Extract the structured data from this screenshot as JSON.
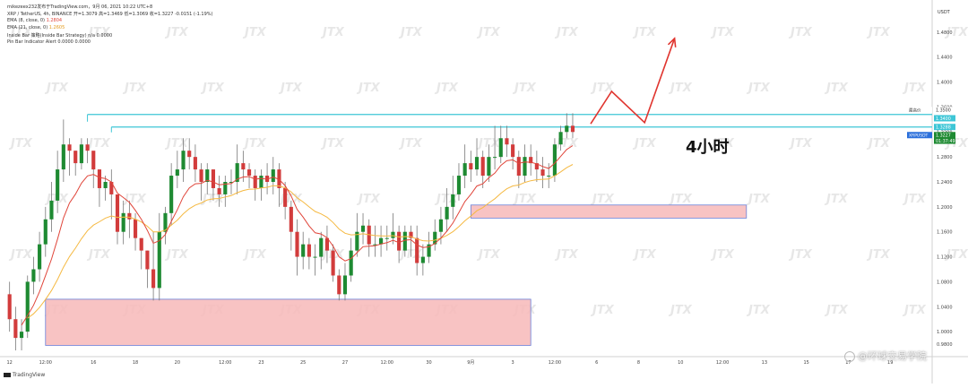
{
  "header": {
    "author": "mikezeex232发布于TradingView.com，9月 06, 2021 10:22 UTC+8",
    "symbol": "XRP / TetherUS, 4h, BINANCE  开=1.3079  高=1.3469  低=1.3069  收=1.3227  -0.0151 (-1.19%)",
    "ema8": "EMA (8, close, 0)",
    "ema8_value": "1.2804",
    "ema21": "EMA (21, close, 0)",
    "ema21_value": "1.2605",
    "inside_bar": "Inside Bar 策略(Inside Bar Strategy)  n/a  0.0000",
    "pin_bar": "Pin Bar Indicator Alert  0.0000  0.0000"
  },
  "annotation": {
    "timeframe": "4小时"
  },
  "watermark": "JTX",
  "footer": {
    "logo": "TradingView",
    "weibo": "@环球交易学院"
  },
  "colors": {
    "up": "#1e8a32",
    "down": "#d23c3c",
    "ema_fast": "#e0453a",
    "ema_slow": "#f5b942",
    "zone_fill": "#f7b8b8",
    "zone_border": "#6a7fd8",
    "resistance": "#3ec6d6",
    "arrow": "#e0352f"
  },
  "chart_data": {
    "type": "candlestick",
    "symbol": "XRP / TetherUS",
    "interval": "4h",
    "y_axis": {
      "unit": "USDT",
      "ylim": [
        0.96,
        1.52
      ],
      "ticks": [
        "1.4800",
        "1.4400",
        "1.4000",
        "1.3600",
        "1.3200",
        "1.2800",
        "1.2400",
        "1.2000",
        "1.1600",
        "1.1200",
        "1.0800",
        "1.0400",
        "1.0000",
        "0.9800"
      ],
      "tick_values": [
        1.48,
        1.44,
        1.4,
        1.36,
        1.32,
        1.28,
        1.24,
        1.2,
        1.16,
        1.12,
        1.08,
        1.04,
        1.0,
        0.98
      ]
    },
    "x_axis": {
      "ticks": [
        "12",
        "12:00",
        "16",
        "18",
        "20",
        "12:00",
        "23",
        "25",
        "27",
        "12:00",
        "30",
        "9月",
        "3",
        "12:00",
        "6",
        "8",
        "10",
        "12:00",
        "13",
        "15",
        "17",
        "19"
      ],
      "tick_index": [
        0,
        6,
        14,
        21,
        28,
        36,
        42,
        49,
        56,
        63,
        70,
        77,
        84,
        91,
        98,
        105,
        112,
        119,
        126,
        133,
        140,
        147
      ],
      "xlim": [
        -1,
        154
      ]
    },
    "price_tags": [
      {
        "label": "最高价",
        "value": "1.3500"
      },
      {
        "label": "",
        "value": "1.3400"
      },
      {
        "label": "",
        "value": "1.3288"
      },
      {
        "label": "XRPUSDT",
        "value": "1.3227"
      },
      {
        "label": "",
        "value": "01:37:49"
      }
    ],
    "resistance_levels": [
      1.348,
      1.328
    ],
    "zones": [
      {
        "name": "lower-demand",
        "x0": 6,
        "x1": 87,
        "y_low": 0.978,
        "y_high": 1.052
      },
      {
        "name": "upper-demand",
        "x0": 77,
        "x1": 123,
        "y_low": 1.182,
        "y_high": 1.203
      }
    ],
    "projection": {
      "x": [
        97,
        100.5,
        106,
        111
      ],
      "y": [
        1.333,
        1.385,
        1.335,
        1.47
      ]
    },
    "candles": {
      "open": [
        1.06,
        1.02,
        0.99,
        1.0,
        1.08,
        1.1,
        1.14,
        1.18,
        1.21,
        1.26,
        1.3,
        1.29,
        1.27,
        1.3,
        1.29,
        1.26,
        1.23,
        1.24,
        1.22,
        1.16,
        1.19,
        1.18,
        1.15,
        1.13,
        1.1,
        1.07,
        1.16,
        1.19,
        1.25,
        1.26,
        1.29,
        1.28,
        1.26,
        1.24,
        1.26,
        1.23,
        1.22,
        1.24,
        1.24,
        1.27,
        1.26,
        1.25,
        1.23,
        1.25,
        1.24,
        1.26,
        1.23,
        1.2,
        1.16,
        1.12,
        1.14,
        1.12,
        1.12,
        1.15,
        1.13,
        1.09,
        1.06,
        1.09,
        1.13,
        1.16,
        1.17,
        1.14,
        1.14,
        1.15,
        1.15,
        1.16,
        1.13,
        1.16,
        1.15,
        1.11,
        1.12,
        1.14,
        1.16,
        1.18,
        1.2,
        1.22,
        1.25,
        1.27,
        1.26,
        1.28,
        1.25,
        1.28,
        1.28,
        1.31,
        1.3,
        1.28,
        1.25,
        1.28,
        1.27,
        1.26,
        1.25,
        1.25,
        1.3,
        1.32,
        1.33
      ],
      "close": [
        1.02,
        0.99,
        1.0,
        1.08,
        1.1,
        1.14,
        1.18,
        1.21,
        1.26,
        1.3,
        1.29,
        1.27,
        1.3,
        1.29,
        1.26,
        1.23,
        1.24,
        1.22,
        1.16,
        1.19,
        1.18,
        1.15,
        1.13,
        1.1,
        1.07,
        1.16,
        1.19,
        1.25,
        1.26,
        1.29,
        1.28,
        1.26,
        1.24,
        1.26,
        1.23,
        1.22,
        1.24,
        1.24,
        1.27,
        1.26,
        1.25,
        1.23,
        1.25,
        1.24,
        1.26,
        1.23,
        1.2,
        1.16,
        1.12,
        1.14,
        1.12,
        1.12,
        1.15,
        1.13,
        1.09,
        1.06,
        1.09,
        1.13,
        1.16,
        1.17,
        1.14,
        1.14,
        1.15,
        1.15,
        1.16,
        1.13,
        1.16,
        1.15,
        1.11,
        1.12,
        1.14,
        1.16,
        1.18,
        1.2,
        1.22,
        1.25,
        1.27,
        1.26,
        1.28,
        1.25,
        1.28,
        1.28,
        1.31,
        1.3,
        1.28,
        1.25,
        1.28,
        1.27,
        1.26,
        1.25,
        1.25,
        1.3,
        1.32,
        1.33,
        1.32
      ],
      "high": [
        1.08,
        1.04,
        1.02,
        1.09,
        1.12,
        1.16,
        1.2,
        1.24,
        1.29,
        1.34,
        1.31,
        1.29,
        1.31,
        1.31,
        1.27,
        1.25,
        1.25,
        1.26,
        1.2,
        1.21,
        1.21,
        1.19,
        1.15,
        1.13,
        1.16,
        1.19,
        1.2,
        1.27,
        1.29,
        1.31,
        1.31,
        1.3,
        1.27,
        1.27,
        1.26,
        1.25,
        1.25,
        1.26,
        1.3,
        1.29,
        1.27,
        1.26,
        1.26,
        1.27,
        1.28,
        1.27,
        1.24,
        1.21,
        1.18,
        1.16,
        1.15,
        1.14,
        1.16,
        1.17,
        1.14,
        1.1,
        1.11,
        1.15,
        1.19,
        1.19,
        1.18,
        1.17,
        1.17,
        1.17,
        1.19,
        1.17,
        1.17,
        1.17,
        1.17,
        1.14,
        1.16,
        1.18,
        1.2,
        1.23,
        1.25,
        1.27,
        1.3,
        1.29,
        1.31,
        1.29,
        1.3,
        1.33,
        1.33,
        1.33,
        1.31,
        1.29,
        1.3,
        1.3,
        1.29,
        1.28,
        1.27,
        1.31,
        1.33,
        1.35,
        1.35
      ],
      "low": [
        1.0,
        0.97,
        0.97,
        0.99,
        1.06,
        1.08,
        1.12,
        1.16,
        1.19,
        1.24,
        1.25,
        1.25,
        1.26,
        1.27,
        1.23,
        1.2,
        1.21,
        1.18,
        1.14,
        1.14,
        1.15,
        1.13,
        1.1,
        1.07,
        1.05,
        1.05,
        1.14,
        1.17,
        1.23,
        1.24,
        1.26,
        1.24,
        1.21,
        1.22,
        1.21,
        1.2,
        1.2,
        1.22,
        1.22,
        1.24,
        1.23,
        1.21,
        1.21,
        1.22,
        1.22,
        1.2,
        1.18,
        1.13,
        1.09,
        1.1,
        1.1,
        1.09,
        1.1,
        1.11,
        1.08,
        1.05,
        1.05,
        1.08,
        1.12,
        1.14,
        1.12,
        1.12,
        1.12,
        1.13,
        1.14,
        1.11,
        1.12,
        1.12,
        1.09,
        1.09,
        1.11,
        1.13,
        1.14,
        1.16,
        1.18,
        1.21,
        1.23,
        1.24,
        1.25,
        1.23,
        1.24,
        1.26,
        1.27,
        1.28,
        1.26,
        1.23,
        1.24,
        1.25,
        1.24,
        1.23,
        1.23,
        1.24,
        1.29,
        1.31,
        1.31
      ]
    }
  }
}
